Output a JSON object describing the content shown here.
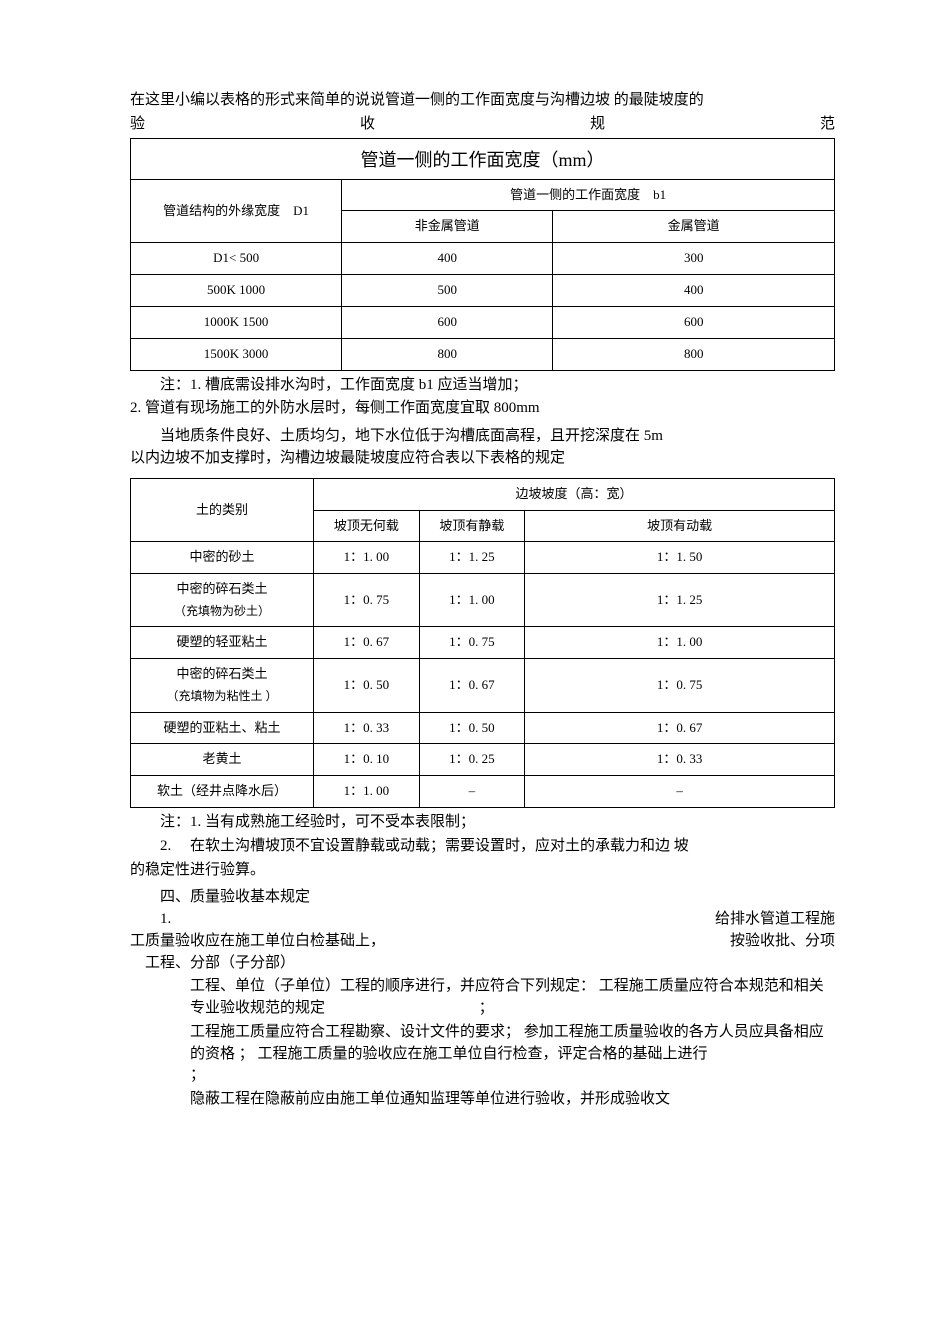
{
  "intro": {
    "line1": "在这里小编以表格的形式来简单的说说管道一侧的工作面宽度与沟槽边坡  的最陡坡度的",
    "sp1": "验",
    "sp2": "收",
    "sp3": "规",
    "sp4": "范"
  },
  "table1": {
    "title": "管道一侧的工作面宽度（mm）",
    "col_left": "管道结构的外缘宽度　D1",
    "col_right_top": "管道一侧的工作面宽度　b1",
    "col_sub1": "非金属管道",
    "col_sub2": "金属管道",
    "rows": [
      {
        "c0": "D1< 500",
        "c1": "400",
        "c2": "300"
      },
      {
        "c0": "500K 1000",
        "c1": "500",
        "c2": "400"
      },
      {
        "c0": "1000K 1500",
        "c1": "600",
        "c2": "600"
      },
      {
        "c0": "1500K 3000",
        "c1": "800",
        "c2": "800"
      }
    ]
  },
  "notes1": {
    "n1": "注：1. 槽底需设排水沟时，工作面宽度  b1 应适当增加；",
    "n2": "2. 管道有现场施工的外防水层时，每侧工作面宽度宜取  800mm"
  },
  "midpara": {
    "l1": "当地质条件良好、土质均匀，地下水位低于沟槽底面高程，且开挖深度在  5m",
    "l2": "以内边坡不加支撑时，沟槽边坡最陡坡度应符合表以下表格的规定"
  },
  "table2": {
    "col_left": "土的类别",
    "col_right_top": "边坡坡度（高：宽）",
    "sub1": "坡顶无何载",
    "sub2": "坡顶有静载",
    "sub3": "坡顶有动载",
    "rows": [
      {
        "soil_main": "中密的砂土",
        "soil_sub": "",
        "c1": "1：1. 00",
        "c2": "1：1. 25",
        "c3": "1：1. 50"
      },
      {
        "soil_main": "中密的碎石类土",
        "soil_sub": "（充填物为砂土）",
        "c1": "1：0. 75",
        "c2": "1：1. 00",
        "c3": "1：1. 25"
      },
      {
        "soil_main": "硬塑的轻亚粘土",
        "soil_sub": "",
        "c1": "1：0. 67",
        "c2": "1：0. 75",
        "c3": "1：1. 00"
      },
      {
        "soil_main": "中密的碎石类土",
        "soil_sub": "（充填物为粘性土  ）",
        "c1": "1：0. 50",
        "c2": "1：0. 67",
        "c3": "1：0. 75"
      },
      {
        "soil_main": "硬塑的亚粘土、粘土",
        "soil_sub": "",
        "c1": "1：0. 33",
        "c2": "1：0. 50",
        "c3": "1：0. 67"
      },
      {
        "soil_main": "老黄土",
        "soil_sub": "",
        "c1": "1：0. 10",
        "c2": "1：0. 25",
        "c3": "1：0. 33"
      },
      {
        "soil_main": "软土（经井点降水后）",
        "soil_sub": "",
        "c1": "1：1. 00",
        "c2": "–",
        "c3": "–"
      }
    ]
  },
  "notes2": {
    "n1": "注：1. 当有成熟施工经验时，可不受本表限制；",
    "n2a": "2. 　在软土沟槽坡顶不宜设置静载或动载；需要设置时，应对土的承载力和边  坡",
    "n2b": "的稳定性进行验算。"
  },
  "sectFour": {
    "title": "四、质量验收基本规定",
    "lineA_left": "1.",
    "lineA_right": "给排水管道工程施",
    "lineB_left": "工质量验收应在施工单位白检基础上，",
    "lineB_right": "按验收批、分项",
    "lineC": "工程、分部（子分部）"
  },
  "bodyBlock": {
    "p1": "工程、单位（子单位）工程的顺序进行，并应符合下列规定：  工程施工质量应符合本规范和相关专业验收规范的规定　　　　　　　　　　   ；",
    "p2": "工程施工质量应符合工程勘察、设计文件的要求；  参加工程施工质量验收的各方人员应具备相应的资格  ；  工程施工质量的验收应在施工单位自行检查，评定合格的基础上进行　　　　　　　　　　　　　　　　　　　　　　　　　　   ；",
    "p3": "隐蔽工程在隐蔽前应由施工单位通知监理等单位进行验收，并形成验收文"
  }
}
